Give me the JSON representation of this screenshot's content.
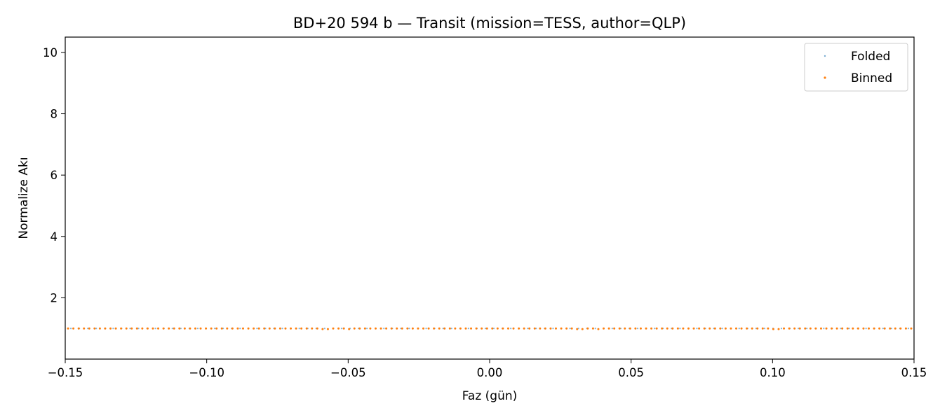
{
  "chart_data": {
    "type": "scatter",
    "title": "BD+20 594 b — Transit (mission=TESS, author=QLP)",
    "xlabel": "Faz (gün)",
    "ylabel": "Normalize Akı",
    "xlim": [
      -0.15,
      0.15
    ],
    "ylim": [
      0,
      10.5
    ],
    "xticks": [
      "−0.15",
      "−0.10",
      "−0.05",
      "0.00",
      "0.05",
      "0.10",
      "0.15"
    ],
    "xtick_values": [
      -0.15,
      -0.1,
      -0.05,
      0.0,
      0.05,
      0.1,
      0.15
    ],
    "yticks": [
      "2",
      "4",
      "6",
      "8",
      "10"
    ],
    "ytick_values": [
      2,
      4,
      6,
      8,
      10
    ],
    "grid": false,
    "legend_position": "top-right",
    "series": [
      {
        "name": "Folded",
        "color": "#1f77b4",
        "marker": "small-dot",
        "x_range": [
          -0.148,
          0.148
        ],
        "count": 100,
        "y_typical": 1.0
      },
      {
        "name": "Binned",
        "color": "#ff7f0e",
        "marker": "dot",
        "x_range": [
          -0.149,
          0.149
        ],
        "count": 160,
        "y_typical": 1.0,
        "dip_points": [
          {
            "x": -0.058,
            "y": 0.98
          },
          {
            "x": -0.05,
            "y": 0.98
          },
          {
            "x": 0.032,
            "y": 0.98
          },
          {
            "x": 0.038,
            "y": 0.98
          },
          {
            "x": 0.101,
            "y": 0.98
          }
        ]
      }
    ]
  }
}
